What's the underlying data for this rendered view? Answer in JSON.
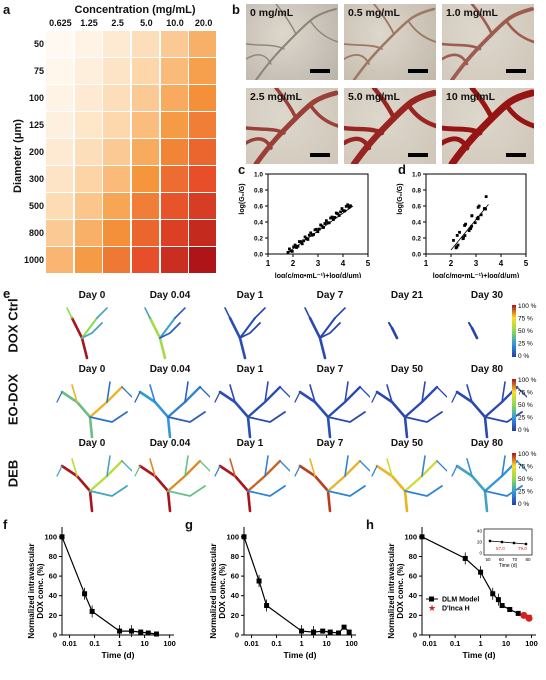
{
  "panel_labels": {
    "a": "a",
    "b": "b",
    "c": "c",
    "d": "d",
    "e": "e",
    "f": "f",
    "g": "g",
    "h": "h"
  },
  "panel_a": {
    "title": "Concentration (mg/mL)",
    "ylabel": "Diameter (μm)",
    "concentrations": [
      "0.625",
      "1.25",
      "2.5",
      "5.0",
      "10.0",
      "20.0"
    ],
    "diameters": [
      "50",
      "75",
      "100",
      "125",
      "200",
      "300",
      "500",
      "800",
      "1000"
    ],
    "heat_values": [
      [
        0.02,
        0.06,
        0.12,
        0.2,
        0.3,
        0.4
      ],
      [
        0.04,
        0.09,
        0.16,
        0.25,
        0.36,
        0.46
      ],
      [
        0.06,
        0.12,
        0.2,
        0.3,
        0.42,
        0.52
      ],
      [
        0.08,
        0.15,
        0.24,
        0.35,
        0.48,
        0.58
      ],
      [
        0.12,
        0.2,
        0.3,
        0.42,
        0.56,
        0.66
      ],
      [
        0.16,
        0.26,
        0.36,
        0.5,
        0.64,
        0.74
      ],
      [
        0.22,
        0.32,
        0.44,
        0.58,
        0.72,
        0.82
      ],
      [
        0.3,
        0.4,
        0.52,
        0.66,
        0.8,
        0.9
      ],
      [
        0.38,
        0.48,
        0.6,
        0.74,
        0.88,
        1.0
      ]
    ]
  },
  "panel_b": {
    "labels": [
      "0 mg/mL",
      "0.5 mg/mL",
      "1.0 mg/mL",
      "2.5 mg/mL",
      "5.0 mg/mL",
      "10 mg/mL"
    ]
  },
  "panel_c": {
    "ylabel": "log(G₀/G)",
    "xlabel": "log(c/mg•mL⁻¹)+log(d/μm)",
    "xticks": [
      "1",
      "2",
      "3",
      "4",
      "5"
    ],
    "yticks": [
      "0.0",
      "0.2",
      "0.4",
      "0.6",
      "0.8",
      "1.0"
    ]
  },
  "panel_d": {
    "ylabel": "log(G₀/G)",
    "xlabel": "log(c/mg•mL⁻¹)+log(d/μm)",
    "xticks": [
      "1",
      "2",
      "3",
      "4",
      "5"
    ],
    "yticks": [
      "0.0",
      "0.2",
      "0.4",
      "0.6",
      "0.8",
      "1.0"
    ]
  },
  "panel_e": {
    "rows": [
      {
        "name": "DOX Ctrl",
        "days": [
          "Day 0",
          "Day 0.04",
          "Day 1",
          "Day 7",
          "Day 21",
          "Day 30"
        ]
      },
      {
        "name": "EO-DOX",
        "days": [
          "Day 0",
          "Day 0.04",
          "Day 1",
          "Day 7",
          "Day 50",
          "Day 80"
        ]
      },
      {
        "name": "DEB",
        "days": [
          "Day 0",
          "Day 0.04",
          "Day 1",
          "Day 7",
          "Day 50",
          "Day 80"
        ]
      }
    ],
    "colorbar_labels": [
      "100 %",
      "75 %",
      "50 %",
      "25 %",
      "0 %"
    ]
  },
  "chart_data": [
    {
      "type": "line",
      "ylabel": "Normalized intravascular DOX conc. (%)",
      "xlabel": "Time (d)",
      "xscale": "log",
      "xlim": [
        0.005,
        150
      ],
      "ylim": [
        0,
        110
      ],
      "xticks": [
        "0.01",
        "0.1",
        "1",
        "10",
        "100"
      ],
      "yticks": [
        "0",
        "20",
        "40",
        "60",
        "80",
        "100"
      ],
      "x": [
        0.005,
        0.04,
        0.08,
        1,
        3,
        7,
        14,
        30
      ],
      "y": [
        100,
        42,
        24,
        4,
        4,
        3,
        2,
        1
      ]
    },
    {
      "type": "line",
      "ylabel": "Normalized intravascular DOX conc. (%)",
      "xlabel": "Time (d)",
      "xscale": "log",
      "xlim": [
        0.005,
        150
      ],
      "ylim": [
        0,
        110
      ],
      "xticks": [
        "0.01",
        "0.1",
        "1",
        "10",
        "100"
      ],
      "yticks": [
        "0",
        "20",
        "40",
        "60",
        "80",
        "100"
      ],
      "x": [
        0.005,
        0.02,
        0.04,
        1,
        3,
        7,
        14,
        30,
        50,
        80
      ],
      "y": [
        100,
        55,
        30,
        4,
        3,
        4,
        3,
        2,
        8,
        3
      ]
    },
    {
      "type": "line",
      "ylabel": "Normalized intravascular DOX conc. (%)",
      "xlabel": "Time (d)",
      "xscale": "log",
      "xlim": [
        0.005,
        150
      ],
      "ylim": [
        0,
        110
      ],
      "xticks": [
        "0.01",
        "0.1",
        "1",
        "10",
        "100"
      ],
      "yticks": [
        "0",
        "20",
        "40",
        "60",
        "80",
        "100"
      ],
      "series": [
        {
          "name": "DLM Model",
          "x": [
            0.005,
            0.25,
            1,
            3,
            5,
            7,
            14,
            30,
            50,
            80
          ],
          "y": [
            100,
            78,
            64,
            42,
            36,
            30,
            26,
            22,
            20,
            18
          ]
        },
        {
          "name": "D'Inca H",
          "x": [
            50,
            80
          ],
          "y": [
            20,
            17
          ]
        }
      ],
      "inset": {
        "xlabel": "Time (d)",
        "xticks": [
          "50",
          "60",
          "70",
          "80"
        ],
        "yticks": [
          "0",
          "20",
          "40"
        ],
        "annotations": [
          "57.0",
          "79.0"
        ]
      }
    }
  ]
}
